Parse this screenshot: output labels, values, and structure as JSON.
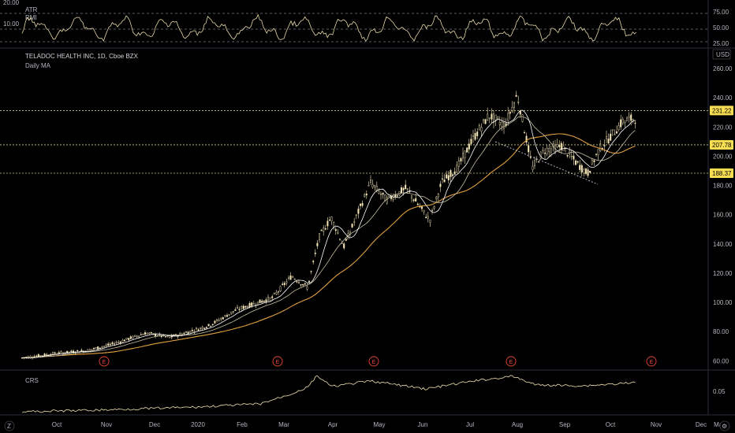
{
  "symbol_title": "TELADOC HEALTH INC, 1D, Cboe BZX",
  "study_label": "Daily MA",
  "currency": "USD",
  "top_pane": {
    "labels": [
      "ATR",
      "RMI"
    ],
    "left_value": "20.00",
    "left_value2": "10.00",
    "scale": [
      "75.00",
      "50.00",
      "25.00"
    ]
  },
  "price_axis": [
    "260.00",
    "240.00",
    "220.00",
    "200.00",
    "180.00",
    "160.00",
    "140.00",
    "120.00",
    "100.00",
    "80.00",
    "60.00"
  ],
  "price_tags": [
    "231.22",
    "207.78",
    "188.37"
  ],
  "bottom_pane": {
    "label": "CRS",
    "scale": [
      "0.05"
    ]
  },
  "time_axis": [
    "Oct",
    "Nov",
    "Dec",
    "2020",
    "Feb",
    "Mar",
    "Apr",
    "May",
    "Jun",
    "Jul",
    "Aug",
    "Sep",
    "Oct",
    "Nov",
    "Dec",
    "Mar"
  ],
  "events_label": "E",
  "corner_buttons": {
    "left": "Z",
    "right": "⚙"
  },
  "colors": {
    "candle": "#f5e6b8",
    "ma_fast": "#ffffff",
    "ma_mid": "#c9c0a5",
    "ma_slow": "#e0a040",
    "indicator": "#e8d9a8",
    "crs": "#efe1b0",
    "tag_bg": "#f7dd52",
    "event": "#e8453c"
  },
  "chart_data": {
    "type": "line",
    "title": "TELADOC HEALTH INC, 1D, Cboe BZX",
    "series_names": [
      "Daily MA"
    ],
    "x": [
      "Oct",
      "Nov",
      "Dec",
      "2020",
      "Feb",
      "Mar",
      "Apr",
      "May",
      "Jun",
      "Jul",
      "Aug",
      "Sep",
      "Oct"
    ],
    "close_approx": [
      66,
      70,
      78,
      84,
      92,
      112,
      138,
      178,
      165,
      215,
      222,
      200,
      226
    ],
    "horizontal_levels": [
      231.22,
      207.78,
      188.37
    ],
    "ylim": [
      55,
      265
    ],
    "axis_ticks": [
      60,
      80,
      100,
      120,
      140,
      160,
      180,
      200,
      220,
      240,
      260
    ]
  }
}
